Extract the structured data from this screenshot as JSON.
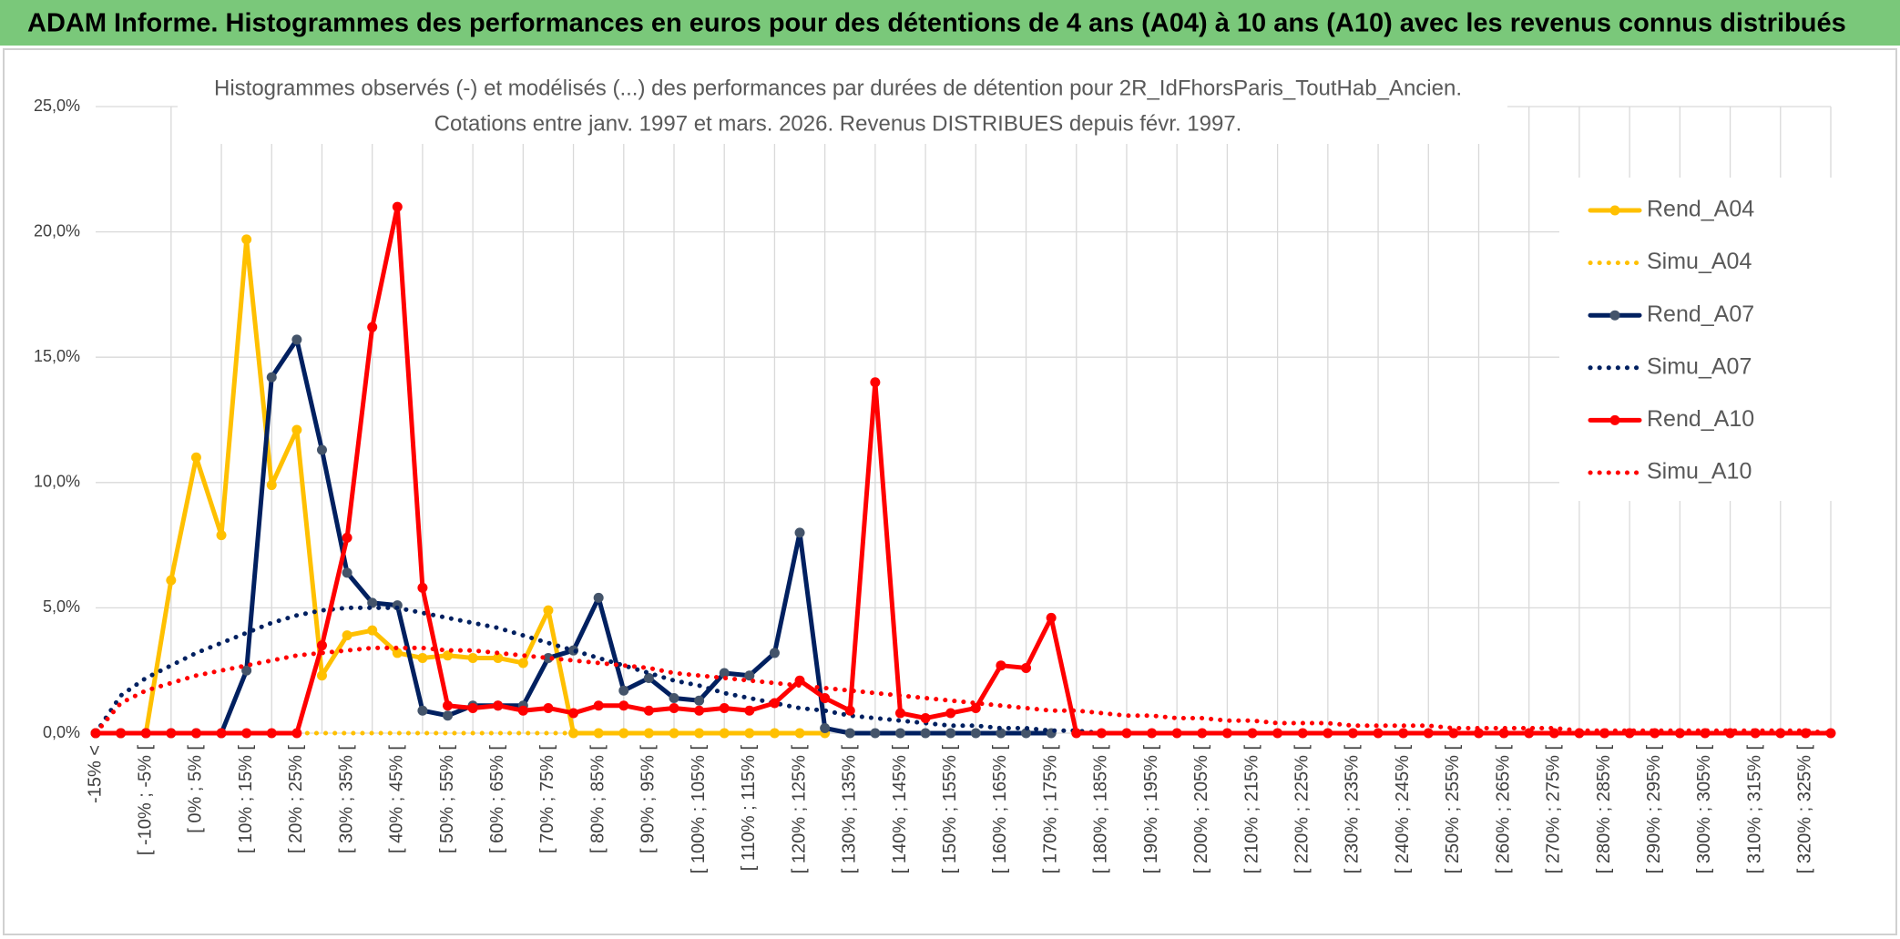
{
  "header": {
    "title": "ADAM Informe. Histogrammes des performances en euros pour des détentions de 4 ans (A04) à 10 ans (A10) avec les revenus connus distribués"
  },
  "chart_data": {
    "type": "line",
    "title": "Histogrammes observés (-) et modélisés (...) des performances par durées de détention pour 2R_IdFhorsParis_ToutHab_Ancien.",
    "subtitle": "Cotations entre janv. 1997 et mars. 2026. Revenus DISTRIBUES depuis févr. 1997.",
    "categories": [
      "-15% <",
      null,
      "[ -10% ; -5% [",
      null,
      "[ 0% ; 5% [",
      null,
      "[ 10% ; 15% [",
      null,
      "[ 20% ; 25% [",
      null,
      "[ 30% ; 35% [",
      null,
      "[ 40% ; 45% [",
      null,
      "[ 50% ; 55% [",
      null,
      "[ 60% ; 65% [",
      null,
      "[ 70% ; 75% [",
      null,
      "[ 80% ; 85% [",
      null,
      "[ 90% ; 95% [",
      null,
      "[ 100% ; 105% [",
      null,
      "[ 110% ; 115% [",
      null,
      "[ 120% ; 125% [",
      null,
      "[ 130% ; 135% [",
      null,
      "[ 140% ; 145% [",
      null,
      "[ 150% ; 155% [",
      null,
      "[ 160% ; 165% [",
      null,
      "[ 170% ; 175% [",
      null,
      "[ 180% ; 185% [",
      null,
      "[ 190% ; 195% [",
      null,
      "[ 200% ; 205% [",
      null,
      "[ 210% ; 215% [",
      null,
      "[ 220% ; 225% [",
      null,
      "[ 230% ; 235% [",
      null,
      "[ 240% ; 245% [",
      null,
      "[ 250% ; 255% [",
      null,
      "[ 260% ; 265% [",
      null,
      "[ 270% ; 275% [",
      null,
      "[ 280% ; 285% [",
      null,
      "[ 290% ; 295% [",
      null,
      "[ 300% ; 305% [",
      null,
      "[ 310% ; 315% [",
      null,
      "[ 320% ; 325% [",
      null
    ],
    "series": [
      {
        "name": "Rend_A04",
        "color": "#FFC000",
        "style": "solid",
        "values": [
          0,
          0,
          0,
          6.1,
          11.0,
          7.9,
          19.7,
          9.9,
          12.1,
          2.3,
          3.9,
          4.1,
          3.2,
          3.0,
          3.1,
          3.0,
          3.0,
          2.8,
          4.9,
          0,
          0,
          0,
          0,
          0,
          0,
          0,
          0,
          0,
          0,
          0,
          null,
          null,
          null,
          null,
          null,
          null,
          null,
          null,
          null,
          null,
          null,
          null,
          null,
          null,
          null,
          null,
          null,
          null,
          null,
          null,
          null,
          null,
          null,
          null,
          null,
          null,
          null,
          null,
          null,
          null,
          null,
          null,
          null,
          null,
          null,
          null,
          null,
          null,
          null,
          null
        ]
      },
      {
        "name": "Simu_A04",
        "color": "#FFC000",
        "style": "dotted",
        "values": [
          0,
          0,
          0,
          0,
          0,
          0,
          0,
          0,
          0,
          0,
          0,
          0,
          0,
          0,
          0,
          0,
          0,
          0,
          0,
          0,
          0,
          0,
          0,
          0,
          0,
          0,
          0,
          0,
          0,
          0,
          null,
          null,
          null,
          null,
          null,
          null,
          null,
          null,
          null,
          null,
          null,
          null,
          null,
          null,
          null,
          null,
          null,
          null,
          null,
          null,
          null,
          null,
          null,
          null,
          null,
          null,
          null,
          null,
          null,
          null,
          null,
          null,
          null,
          null,
          null,
          null,
          null,
          null,
          null,
          null
        ]
      },
      {
        "name": "Rend_A07",
        "color": "#002060",
        "style": "solid",
        "values": [
          0,
          0,
          0,
          0,
          0,
          0,
          2.5,
          14.2,
          15.7,
          11.3,
          6.4,
          5.2,
          5.1,
          0.9,
          0.7,
          1.1,
          1.1,
          1.1,
          3.0,
          3.3,
          5.4,
          1.7,
          2.2,
          1.4,
          1.3,
          2.4,
          2.3,
          3.2,
          8.0,
          0.2,
          0,
          0,
          0,
          0,
          0,
          0,
          0,
          0,
          0,
          null,
          null,
          null,
          null,
          null,
          null,
          null,
          null,
          null,
          null,
          null,
          null,
          null,
          null,
          null,
          null,
          null,
          null,
          null,
          null,
          null,
          null,
          null,
          null,
          null,
          null,
          null,
          null,
          null,
          null,
          null
        ]
      },
      {
        "name": "Simu_A07",
        "color": "#002060",
        "style": "dotted",
        "values": [
          0,
          1.5,
          2.2,
          2.7,
          3.2,
          3.6,
          4.0,
          4.4,
          4.7,
          4.9,
          5.0,
          5.0,
          5.0,
          4.8,
          4.6,
          4.4,
          4.2,
          3.9,
          3.6,
          3.3,
          3.0,
          2.7,
          2.4,
          2.1,
          1.9,
          1.6,
          1.4,
          1.2,
          1.0,
          0.9,
          0.7,
          0.6,
          0.5,
          0.4,
          0.3,
          0.3,
          0.2,
          0.2,
          0.1,
          0.1,
          0,
          null,
          null,
          null,
          null,
          null,
          null,
          null,
          null,
          null,
          null,
          null,
          null,
          null,
          null,
          null,
          null,
          null,
          null,
          null,
          null,
          null,
          null,
          null,
          null,
          null,
          null,
          null,
          null,
          null
        ]
      },
      {
        "name": "Rend_A10",
        "color": "#FF0000",
        "style": "solid",
        "values": [
          0,
          0,
          0,
          0,
          0,
          0,
          0,
          0,
          0,
          3.5,
          7.8,
          16.2,
          21.0,
          5.8,
          1.1,
          1.0,
          1.1,
          0.9,
          1.0,
          0.8,
          1.1,
          1.1,
          0.9,
          1.0,
          0.9,
          1.0,
          0.9,
          1.2,
          2.1,
          1.4,
          0.9,
          14.0,
          0.8,
          0.6,
          0.8,
          1.0,
          2.7,
          2.6,
          4.6,
          0,
          0,
          0,
          0,
          0,
          0,
          0,
          0,
          0,
          0,
          0,
          0,
          0,
          0,
          0,
          0,
          0,
          0,
          0,
          0,
          0,
          0,
          0,
          0,
          0,
          0,
          0,
          0,
          0,
          0,
          0
        ]
      },
      {
        "name": "Simu_A10",
        "color": "#FF0000",
        "style": "dotted",
        "values": [
          0,
          1.2,
          1.7,
          2.0,
          2.3,
          2.5,
          2.7,
          2.9,
          3.1,
          3.2,
          3.3,
          3.4,
          3.4,
          3.4,
          3.3,
          3.3,
          3.2,
          3.1,
          3.0,
          2.9,
          2.8,
          2.7,
          2.6,
          2.4,
          2.3,
          2.2,
          2.1,
          2.0,
          1.9,
          1.8,
          1.7,
          1.6,
          1.5,
          1.4,
          1.3,
          1.2,
          1.1,
          1.0,
          0.9,
          0.9,
          0.8,
          0.7,
          0.7,
          0.6,
          0.6,
          0.5,
          0.5,
          0.4,
          0.4,
          0.4,
          0.3,
          0.3,
          0.3,
          0.3,
          0.2,
          0.2,
          0.2,
          0.2,
          0.2,
          0.1,
          0.1,
          0.1,
          0.1,
          0.1,
          0.1,
          0.1,
          0.1,
          0.1,
          0.1,
          0
        ]
      }
    ],
    "ylim": [
      0,
      25
    ],
    "yticks": [
      {
        "value": 0,
        "label": "0,0%"
      },
      {
        "value": 5,
        "label": "5,0%"
      },
      {
        "value": 10,
        "label": "10,0%"
      },
      {
        "value": 15,
        "label": "15,0%"
      },
      {
        "value": 20,
        "label": "20,0%"
      },
      {
        "value": 25,
        "label": "25,0%"
      }
    ],
    "grid": true,
    "legend": "right"
  }
}
